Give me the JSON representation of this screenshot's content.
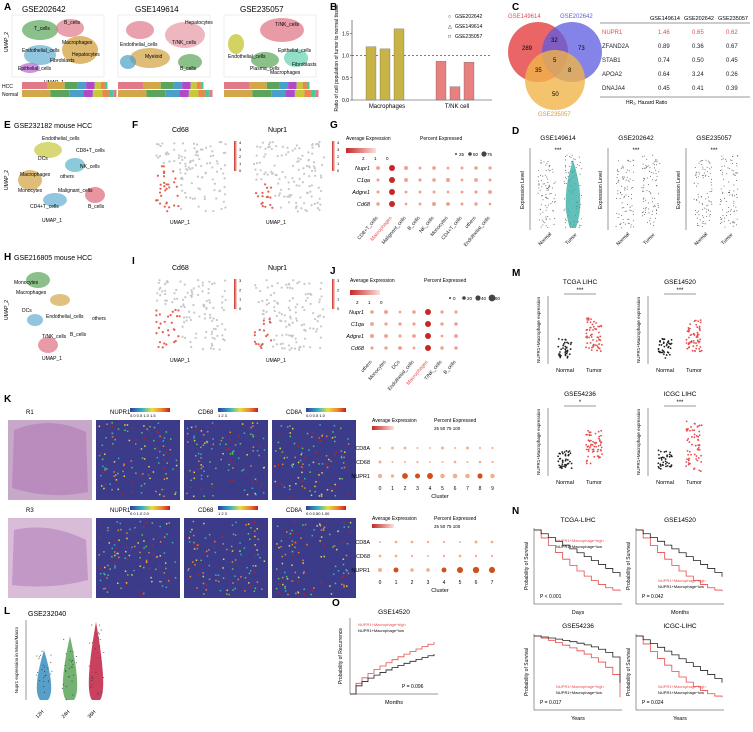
{
  "panels": {
    "A": {
      "label": "A",
      "titles": [
        "GSE202642",
        "GSE149614",
        "GSE235057"
      ],
      "axis_x": "UMAP_1",
      "axis_y": "UMAP_2",
      "cell_labels_1": [
        "T_cells",
        "B_cells",
        "Macrophages",
        "Hepatocytes",
        "Endothelial_cells",
        "Fibroblasts",
        "Epithelial_cells"
      ],
      "cell_labels_2": [
        "Hepatocytes",
        "T/NK_cells",
        "Endothelial_cells",
        "Myeloid",
        "B_cells"
      ],
      "cell_labels_3": [
        "T/NK_cells",
        "Endothelial_cells",
        "Epithelial_cells",
        "Plasma_cells",
        "Fibroblasts",
        "Macrophages"
      ],
      "bar_rows": [
        "HCC",
        "Normal"
      ]
    },
    "B": {
      "label": "B"
    },
    "C": {
      "label": "C",
      "venn": {
        "sets": [
          "GSE149614",
          "GSE202642",
          "GSE235057"
        ],
        "counts": {
          "a": "289",
          "b": "73",
          "c": "50",
          "ab": "32",
          "ac": "35",
          "bc": "8",
          "abc": "5"
        }
      },
      "table": {
        "headers": [
          "",
          "GSE149614",
          "GSE202642",
          "GSE235057"
        ],
        "rows": [
          [
            "NUPR1",
            "1.46",
            "0.65",
            "0.62"
          ],
          [
            "ZFAND2A",
            "0.89",
            "0.36",
            "0.67"
          ],
          [
            "STAB1",
            "0.74",
            "0.50",
            "0.45"
          ],
          [
            "APOA2",
            "0.64",
            "3.24",
            "0.26"
          ],
          [
            "DNAJA4",
            "0.45",
            "0.41",
            "0.39"
          ]
        ],
        "footnote": "HR₂, Hazard Ratio"
      }
    },
    "D": {
      "label": "D",
      "titles": [
        "GSE149614",
        "GSE202642",
        "GSE235057"
      ],
      "ylabel": "Expression Level",
      "groups": [
        "Normal",
        "Tumor"
      ],
      "sig": "***"
    },
    "E": {
      "label": "E",
      "title": "GSE232182 mouse HCC",
      "cell_labels": [
        "Endothelial_cells",
        "CD8+T_cells",
        "DCs",
        "Macrophages",
        "NK_cells",
        "others",
        "Monocytes",
        "Malignant_cells",
        "CD4+T_cells",
        "B_cells"
      ],
      "axis_x": "UMAP_1",
      "axis_y": "UMAP_2"
    },
    "F": {
      "label": "F",
      "genes": [
        "Cd68",
        "Nupr1"
      ],
      "axis_x": "UMAP_1",
      "axis_y": "UMAP_2",
      "scale": [
        "4",
        "3",
        "2",
        "1",
        "0"
      ]
    },
    "G": {
      "label": "G",
      "legend_expr": "Average Expression",
      "legend_pct": "Percent Expressed",
      "expr_ticks": [
        "2",
        "1",
        "0"
      ],
      "pct_ticks": [
        "25",
        "50",
        "75"
      ],
      "genes": [
        "Nupr1",
        "C1qa",
        "Adgre1",
        "Cd68"
      ],
      "cells": [
        "CD8+T_cells",
        "Macrophages",
        "Malignant_cells",
        "B_cells",
        "NK_cells",
        "Monocytes",
        "CD4+T_cells",
        "others",
        "Endothelial_cells"
      ]
    },
    "H": {
      "label": "H",
      "title": "GSE216805 mouse HCC",
      "cell_labels": [
        "Monocytes",
        "Macrophages",
        "DCs",
        "Endothelial_cells",
        "others",
        "T/NK_cells",
        "B_cells"
      ],
      "axis_x": "UMAP_1",
      "axis_y": "UMAP_2"
    },
    "I": {
      "label": "I",
      "genes": [
        "Cd68",
        "Nupr1"
      ],
      "axis_x": "UMAP_1",
      "axis_y": "UMAP_2",
      "scale": [
        "3",
        "2",
        "1",
        "0"
      ]
    },
    "J": {
      "label": "J",
      "legend_expr": "Average Expression",
      "legend_pct": "Percent Expressed",
      "expr_ticks": [
        "2",
        "1",
        "0"
      ],
      "pct_ticks": [
        "0",
        "20",
        "40",
        "60"
      ],
      "genes": [
        "Nupr1",
        "C1qa",
        "Adgre1",
        "Cd68"
      ],
      "cells": [
        "others",
        "Monocytes",
        "DCs",
        "Endothelial_cells",
        "Macrophages",
        "T/NK_cells",
        "B_cells"
      ]
    },
    "K": {
      "label": "K",
      "rows": [
        "R1",
        "R3"
      ],
      "spatial_r1": [
        {
          "gene": "NUPR1",
          "ticks": "0.0 0.5 1.0 1.5"
        },
        {
          "gene": "CD68",
          "ticks": "1  2  3"
        },
        {
          "gene": "CD8A",
          "ticks": "0.0 0.5 1.0"
        }
      ],
      "spatial_r3": [
        {
          "gene": "NUPR1",
          "ticks": "0.0 1.0 2.0"
        },
        {
          "gene": "CD68",
          "ticks": "1  2  3"
        },
        {
          "gene": "CD8A",
          "ticks": "0.0 0.50 1.00"
        }
      ],
      "dot_genes": [
        "CD8A",
        "CD68",
        "NUPR1"
      ],
      "clusters_r1": [
        "0",
        "1",
        "2",
        "3",
        "4",
        "5",
        "6",
        "7",
        "8",
        "9"
      ],
      "clusters_r3": [
        "0",
        "1",
        "2",
        "3",
        "4",
        "5",
        "6",
        "7"
      ],
      "cluster_label": "Cluster",
      "legend_expr": "Average Expression",
      "legend_pct": "Percent Expressed",
      "pct_ticks": "25 50 75 100"
    },
    "L": {
      "label": "L",
      "title": "GSE232040",
      "ylabel": "Nupr1 expression in Mono/Macro",
      "groups": [
        "12H",
        "24H",
        "36H"
      ]
    },
    "M": {
      "label": "M",
      "titles": [
        "TCGA LIHC",
        "GSE14520",
        "GSE54236",
        "ICGC LIHC"
      ],
      "ylabel": "NUPR1+Macrophage expression",
      "groups": [
        "Normal",
        "Tumor"
      ],
      "sigs": [
        "***",
        "***",
        "*",
        "***"
      ]
    },
    "N": {
      "label": "N",
      "titles": [
        "TCGA-LIHC",
        "GSE14520",
        "GSE54236",
        "ICGC-LIHC"
      ],
      "ylabel": "Probability of Survival",
      "xlabels": [
        "Days",
        "Months",
        "Years",
        "Years"
      ],
      "pvals": [
        "P < 0.001",
        "P = 0.042",
        "P = 0.017",
        "P = 0.024"
      ],
      "legend_high": "NUPR1+Macrophage^high",
      "legend_low": "NUPR1+Macrophage^low"
    },
    "O": {
      "label": "O",
      "title": "GSE14520",
      "ylabel": "Probability of Recurrence",
      "xlabel": "Months",
      "pval": "P = 0.096",
      "legend_high": "NUPR1+Macrophage^high",
      "legend_low": "NUPR1+Macrophage^low"
    }
  },
  "chart_data": {
    "type": "bar",
    "panel": "B",
    "title": "",
    "ylabel": "Ratio of cell population of tumor to normal tissue",
    "categories": [
      "Macrophages",
      "T/NK cell"
    ],
    "series": [
      {
        "name": "GSE202642",
        "values": [
          1.2,
          0.87
        ]
      },
      {
        "name": "GSE149614",
        "values": [
          1.15,
          0.3
        ]
      },
      {
        "name": "GSE235057",
        "values": [
          1.6,
          0.85
        ]
      }
    ],
    "yticks": [
      "0.0",
      "0.5",
      "1.0",
      "1.5"
    ],
    "ylim": [
      0,
      1.8
    ],
    "reference_line": 1.0
  },
  "colors": {
    "bar_macro": "#c8b446",
    "bar_tnk": "#e88080",
    "red": "#e64b4b",
    "black": "#222222"
  }
}
